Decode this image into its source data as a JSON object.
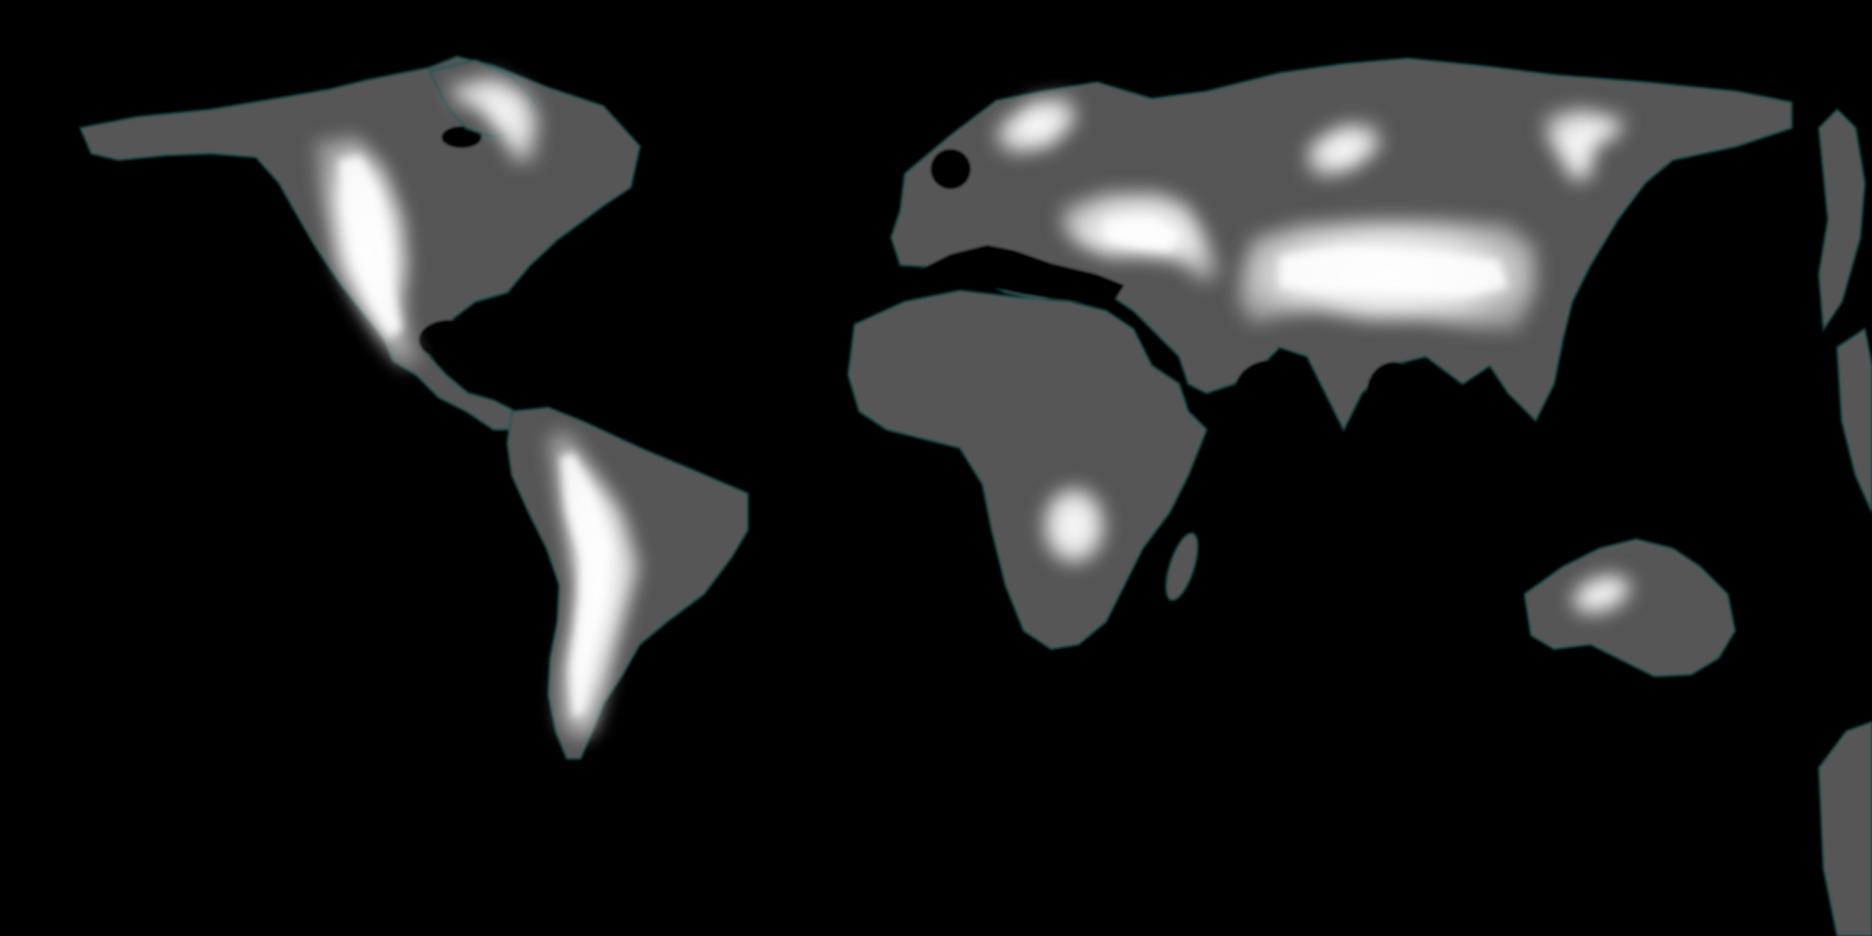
{
  "map": {
    "type": "heightmap",
    "projection": "equirectangular",
    "colors": {
      "ocean": "#000000",
      "land": "#565656",
      "coast_tint": "#0f5a5a",
      "highland": "#ffffff"
    },
    "continents": [
      "north-america",
      "south-america",
      "europe-asia",
      "africa",
      "australia",
      "madagascar",
      "japan",
      "greenland-fragment"
    ],
    "highlands": [
      "rocky-mountains",
      "baffin-highlands",
      "andes",
      "scandinavian-mountains",
      "alps-caucasus",
      "himalaya-tibet",
      "central-siberian-plateau",
      "verkhoyansk-range",
      "southern-african-plateau",
      "great-dividing-range"
    ]
  }
}
